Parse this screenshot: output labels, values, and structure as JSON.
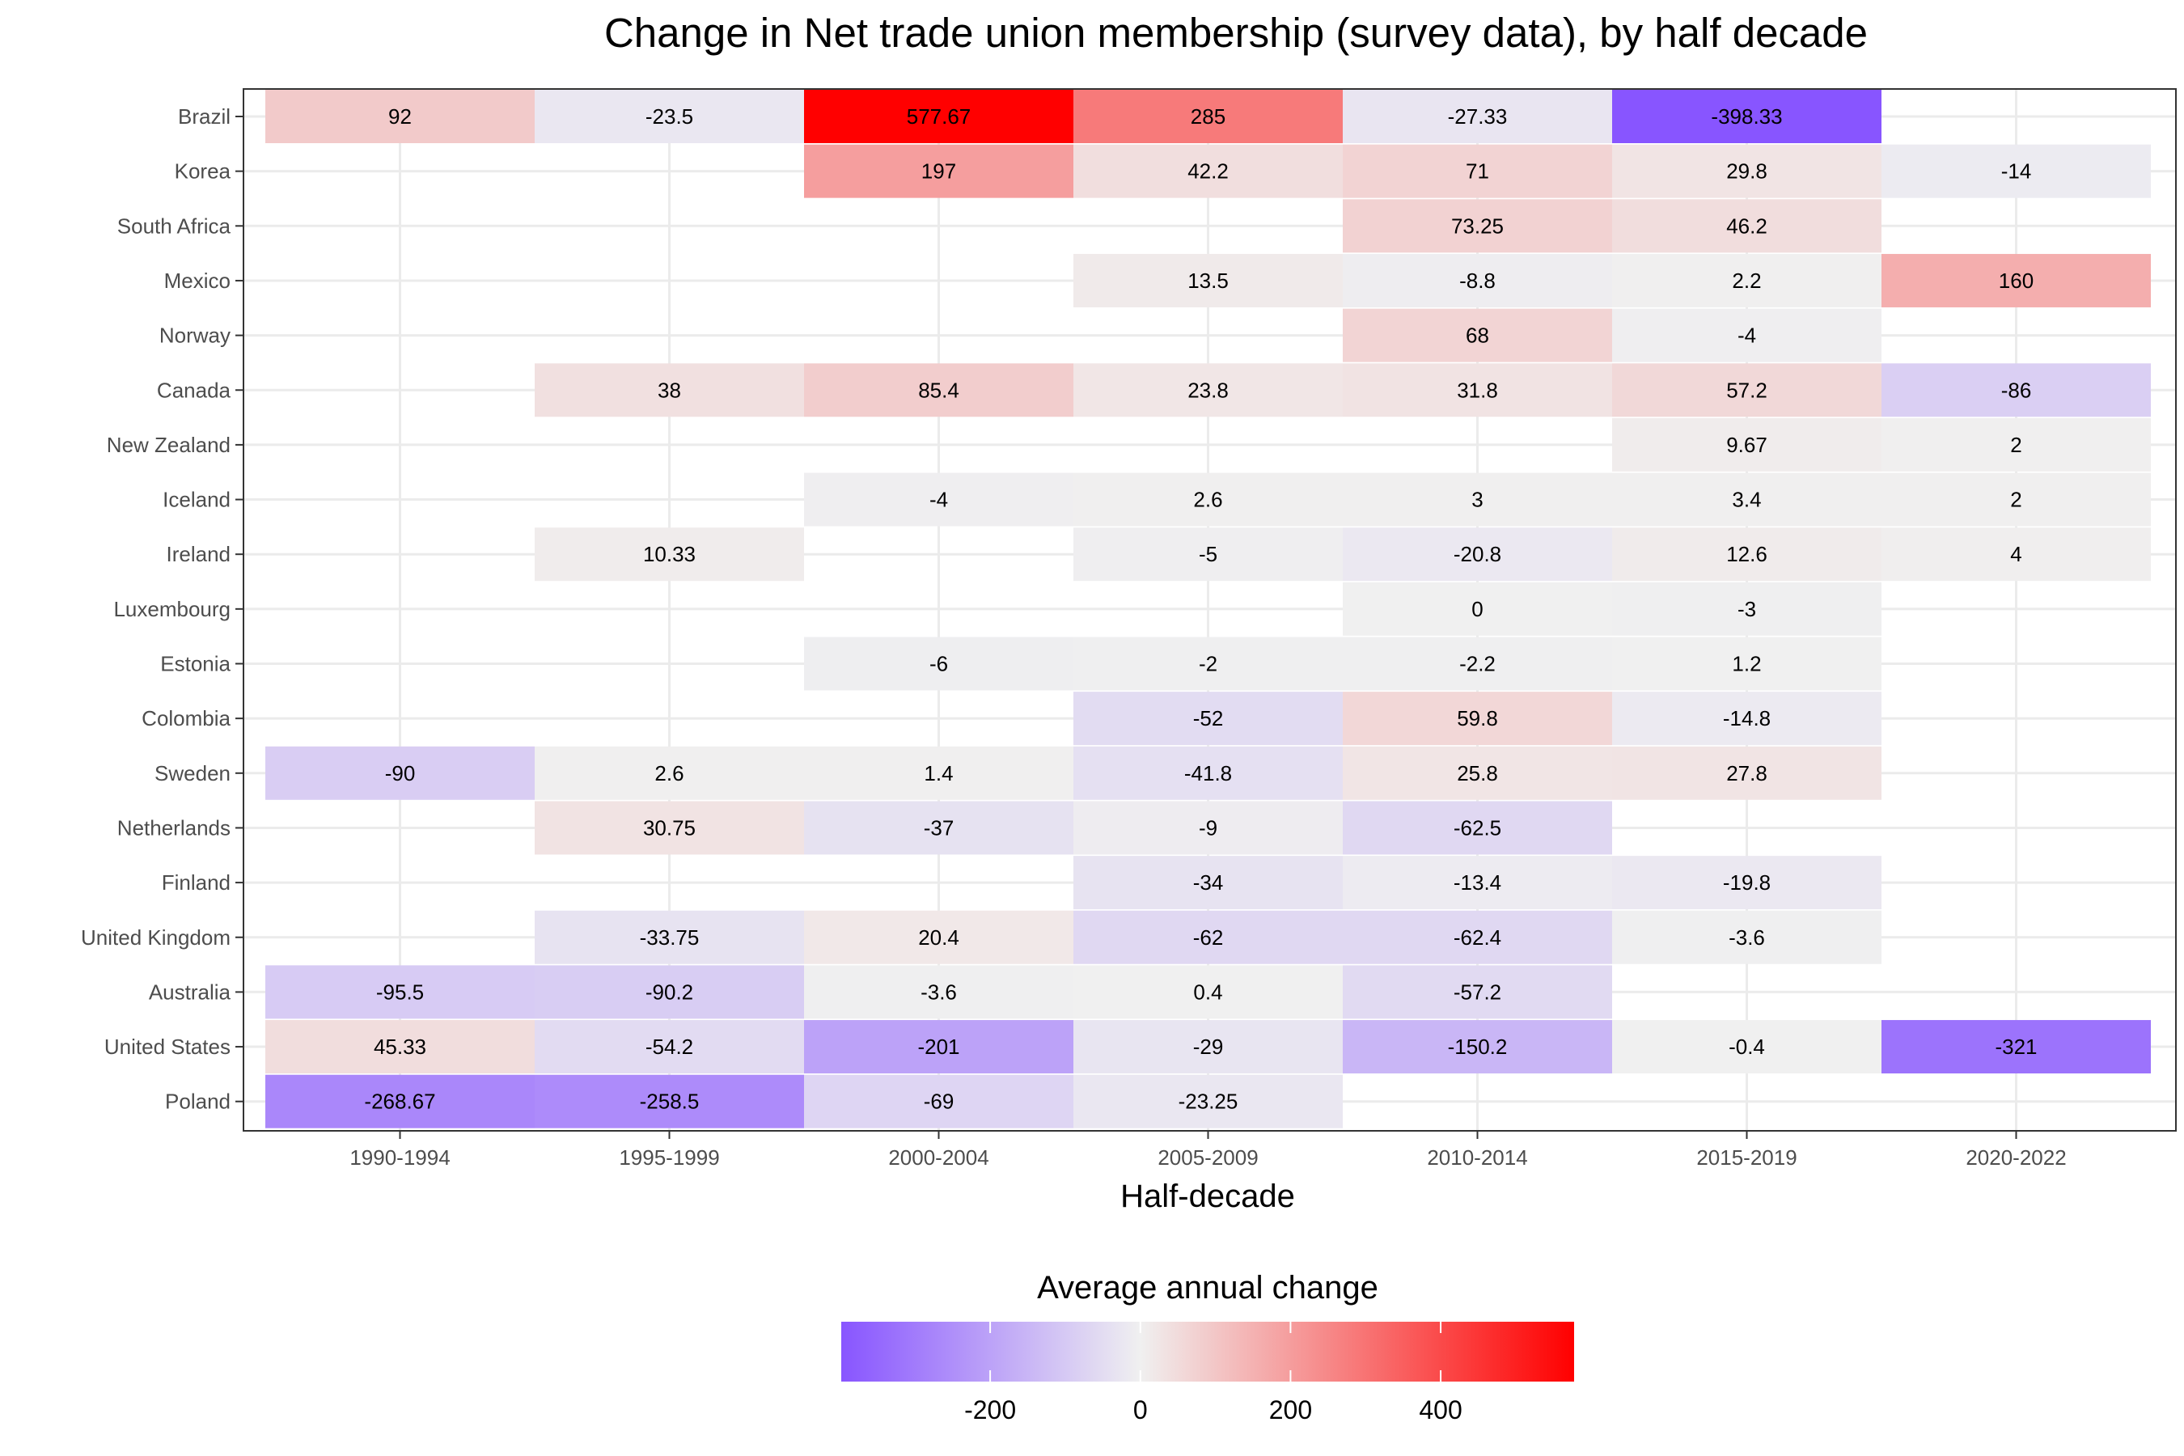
{
  "chart_data": {
    "type": "heatmap",
    "title": "Change in Net trade union membership (survey data), by half decade",
    "xlabel": "Half-decade",
    "ylabel": "",
    "x": [
      "1990-1994",
      "1995-1999",
      "2000-2004",
      "2005-2009",
      "2010-2014",
      "2015-2019",
      "2020-2022"
    ],
    "y": [
      "Brazil",
      "Korea",
      "South Africa",
      "Mexico",
      "Norway",
      "Canada",
      "New Zealand",
      "Iceland",
      "Ireland",
      "Luxembourg",
      "Estonia",
      "Colombia",
      "Sweden",
      "Netherlands",
      "Finland",
      "United Kingdom",
      "Australia",
      "United States",
      "Poland"
    ],
    "values": [
      [
        92,
        -23.5,
        577.67,
        285,
        -27.33,
        -398.33,
        null
      ],
      [
        null,
        null,
        197,
        42.2,
        71,
        29.8,
        -14
      ],
      [
        null,
        null,
        null,
        null,
        73.25,
        46.2,
        null
      ],
      [
        null,
        null,
        null,
        13.5,
        -8.8,
        2.2,
        160
      ],
      [
        null,
        null,
        null,
        null,
        68,
        -4,
        null
      ],
      [
        null,
        38,
        85.4,
        23.8,
        31.8,
        57.2,
        -86
      ],
      [
        null,
        null,
        null,
        null,
        null,
        9.67,
        2
      ],
      [
        null,
        null,
        -4,
        2.6,
        3,
        3.4,
        2
      ],
      [
        null,
        10.33,
        null,
        -5,
        -20.8,
        12.6,
        4
      ],
      [
        null,
        null,
        null,
        null,
        0,
        -3,
        null
      ],
      [
        null,
        null,
        -6,
        -2,
        -2.2,
        1.2,
        null
      ],
      [
        null,
        null,
        null,
        -52,
        59.8,
        -14.8,
        null
      ],
      [
        -90,
        2.6,
        1.4,
        -41.8,
        25.8,
        27.8,
        null
      ],
      [
        null,
        30.75,
        -37,
        -9,
        -62.5,
        null,
        null
      ],
      [
        null,
        null,
        null,
        -34,
        -13.4,
        -19.8,
        null
      ],
      [
        null,
        -33.75,
        20.4,
        -62,
        -62.4,
        -3.6,
        null
      ],
      [
        -95.5,
        -90.2,
        -3.6,
        0.4,
        -57.2,
        null,
        null
      ],
      [
        45.33,
        -54.2,
        -201,
        -29,
        -150.2,
        -0.4,
        -321
      ],
      [
        -268.67,
        -258.5,
        -69,
        -23.25,
        null,
        null,
        null
      ]
    ],
    "labels": [
      [
        "92",
        "-23.5",
        "577.67",
        "285",
        "-27.33",
        "-398.33",
        null
      ],
      [
        null,
        null,
        "197",
        "42.2",
        "71",
        "29.8",
        "-14"
      ],
      [
        null,
        null,
        null,
        null,
        "73.25",
        "46.2",
        null
      ],
      [
        null,
        null,
        null,
        "13.5",
        "-8.8",
        "2.2",
        "160"
      ],
      [
        null,
        null,
        null,
        null,
        "68",
        "-4",
        null
      ],
      [
        null,
        "38",
        "85.4",
        "23.8",
        "31.8",
        "57.2",
        "-86"
      ],
      [
        null,
        null,
        null,
        null,
        null,
        "9.67",
        "2"
      ],
      [
        null,
        null,
        "-4",
        "2.6",
        "3",
        "3.4",
        "2"
      ],
      [
        null,
        "10.33",
        null,
        "-5",
        "-20.8",
        "12.6",
        "4"
      ],
      [
        null,
        null,
        null,
        null,
        "0",
        "-3",
        null
      ],
      [
        null,
        null,
        "-6",
        "-2",
        "-2.2",
        "1.2",
        null
      ],
      [
        null,
        null,
        null,
        "-52",
        "59.8",
        "-14.8",
        null
      ],
      [
        "-90",
        "2.6",
        "1.4",
        "-41.8",
        "25.8",
        "27.8",
        null
      ],
      [
        null,
        "30.75",
        "-37",
        "-9",
        "-62.5",
        null,
        null
      ],
      [
        null,
        null,
        null,
        "-34",
        "-13.4",
        "-19.8",
        null
      ],
      [
        null,
        "-33.75",
        "20.4",
        "-62",
        "-62.4",
        "-3.6",
        null
      ],
      [
        "-95.5",
        "-90.2",
        "-3.6",
        "0.4",
        "-57.2",
        null,
        null
      ],
      [
        "45.33",
        "-54.2",
        "-201",
        "-29",
        "-150.2",
        "-0.4",
        "-321"
      ],
      [
        "-268.67",
        "-258.5",
        "-69",
        "-23.25",
        null,
        null,
        null
      ]
    ],
    "color_scale": {
      "low_color": "#8855ff",
      "mid_color": "#f0f0f0",
      "high_color": "#ff0000",
      "midpoint": 0,
      "domain": [
        -398.33,
        577.67
      ]
    },
    "legend": {
      "title": "Average annual change",
      "position": "bottom",
      "ticks": [
        -200,
        0,
        200,
        400
      ],
      "tick_labels": [
        "-200",
        "0",
        "200",
        "400"
      ]
    },
    "grid": true
  }
}
